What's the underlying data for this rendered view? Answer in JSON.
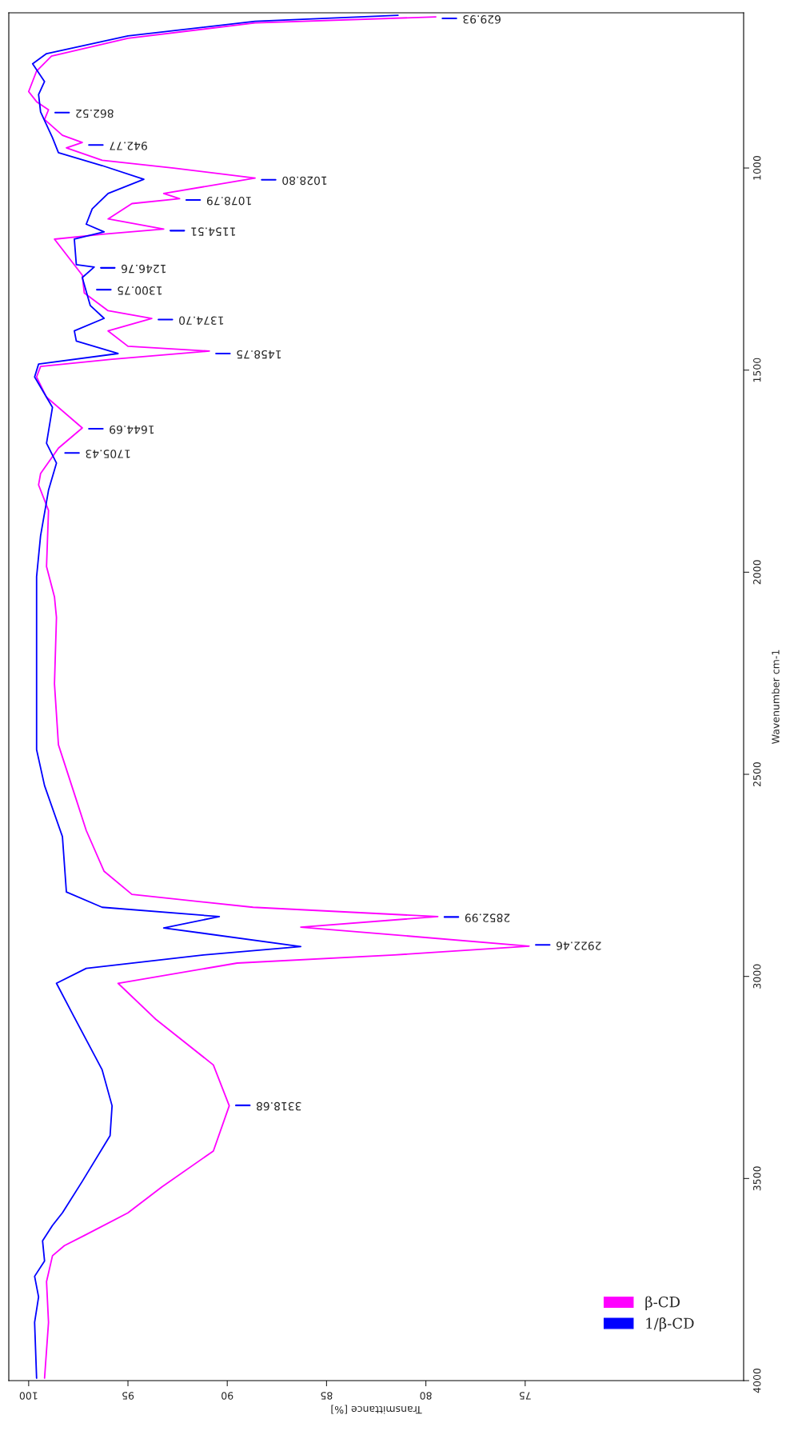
{
  "chart_data": {
    "type": "line",
    "xlabel": "Transmittance [%]",
    "ylabel": "Wavenumber cm-1",
    "xlim": [
      101,
      64
    ],
    "ylim": [
      4000,
      616
    ],
    "xticks": [
      100,
      95,
      90,
      85,
      80,
      75
    ],
    "yticks": [
      1000,
      1500,
      2000,
      2500,
      3000,
      3500,
      4000
    ],
    "grid": false,
    "legend": "bottom right",
    "line_style": "solid",
    "marker": "none",
    "series": [
      {
        "name": "β-CD",
        "color": "#ff00ff",
        "x": [
          79.5,
          88.6,
          95.0,
          98.85,
          99.6,
          100.0,
          99.6,
          99.0,
          99.2,
          98.3,
          97.3,
          98.1,
          96.3,
          92.7,
          88.6,
          93.2,
          92.4,
          94.8,
          96.0,
          93.2,
          96.3,
          98.7,
          98.1,
          97.3,
          97.2,
          96.0,
          93.8,
          96.0,
          95.0,
          90.9,
          95.8,
          99.4,
          99.6,
          99.1,
          97.3,
          98.5,
          99.4,
          99.5,
          99.0,
          99.1,
          98.7,
          98.6,
          98.7,
          98.5,
          97.6,
          97.1,
          96.2,
          94.8,
          88.7,
          79.4,
          86.3,
          74.8,
          81.6,
          89.5,
          95.5,
          93.6,
          90.7,
          89.9,
          90.7,
          93.3,
          95.0,
          97.2,
          98.2,
          98.8,
          99.1,
          99.0,
          99.2
        ],
        "values": [
          626,
          641,
          679,
          723,
          760,
          811,
          836,
          856,
          880,
          919,
          937,
          950,
          981,
          1000,
          1025,
          1063,
          1076,
          1088,
          1126,
          1151,
          1164,
          1176,
          1214,
          1265,
          1309,
          1353,
          1372,
          1403,
          1441,
          1453,
          1473,
          1491,
          1517,
          1567,
          1643,
          1693,
          1756,
          1784,
          1847,
          1986,
          2061,
          2112,
          2276,
          2427,
          2563,
          2639,
          2740,
          2797,
          2829,
          2852,
          2878,
          2925,
          2947,
          2967,
          3017,
          3106,
          3219,
          3320,
          3432,
          3521,
          3585,
          3641,
          3666,
          3691,
          3755,
          3856,
          3994
        ]
      },
      {
        "name": "1/β-CD",
        "color": "#0000ff",
        "x": [
          81.4,
          88.6,
          95.0,
          99.1,
          99.8,
          99.2,
          99.5,
          99.4,
          98.8,
          98.5,
          96.3,
          94.2,
          96.0,
          96.8,
          97.1,
          96.2,
          97.7,
          97.6,
          96.7,
          97.3,
          96.9,
          96.2,
          97.7,
          97.6,
          95.5,
          99.5,
          99.7,
          98.8,
          99.1,
          98.6,
          99.0,
          99.4,
          99.6,
          99.6,
          99.6,
          99.2,
          98.3,
          98.1,
          96.3,
          90.4,
          93.2,
          86.3,
          91.2,
          97.1,
          98.6,
          97.8,
          96.3,
          95.8,
          95.9,
          97.3,
          98.3,
          98.8,
          99.3,
          99.2,
          99.7,
          99.5,
          99.7,
          99.6
        ],
        "values": [
          622,
          637,
          673,
          717,
          742,
          786,
          818,
          861,
          925,
          962,
          994,
          1028,
          1063,
          1101,
          1139,
          1158,
          1176,
          1239,
          1245,
          1271,
          1340,
          1372,
          1403,
          1428,
          1459,
          1485,
          1517,
          1592,
          1681,
          1730,
          1797,
          1910,
          2011,
          2213,
          2439,
          2528,
          2654,
          2791,
          2829,
          2852,
          2880,
          2926,
          2947,
          2980,
          3017,
          3092,
          3231,
          3320,
          3394,
          3507,
          3585,
          3616,
          3654,
          3704,
          3742,
          3793,
          3856,
          3994
        ]
      }
    ],
    "annotations": [
      {
        "text": "629.93",
        "x": 79.5,
        "y": 630
      },
      {
        "text": "862.52",
        "x": 99.0,
        "y": 863
      },
      {
        "text": "942.77",
        "x": 97.3,
        "y": 943
      },
      {
        "text": "1028.80",
        "x": 88.6,
        "y": 1029
      },
      {
        "text": "1078.79",
        "x": 92.4,
        "y": 1079
      },
      {
        "text": "1154.51",
        "x": 93.2,
        "y": 1155
      },
      {
        "text": "1246.76",
        "x": 96.7,
        "y": 1247
      },
      {
        "text": "1300.75",
        "x": 96.9,
        "y": 1301
      },
      {
        "text": "1374.70",
        "x": 93.8,
        "y": 1375
      },
      {
        "text": "1458.75",
        "x": 90.9,
        "y": 1459
      },
      {
        "text": "1644.69",
        "x": 97.3,
        "y": 1645
      },
      {
        "text": "1705.43",
        "x": 98.5,
        "y": 1705
      },
      {
        "text": "2852.99",
        "x": 79.4,
        "y": 2853
      },
      {
        "text": "2922.46",
        "x": 74.8,
        "y": 2922
      },
      {
        "text": "3318.68",
        "x": 89.9,
        "y": 3319
      }
    ]
  }
}
